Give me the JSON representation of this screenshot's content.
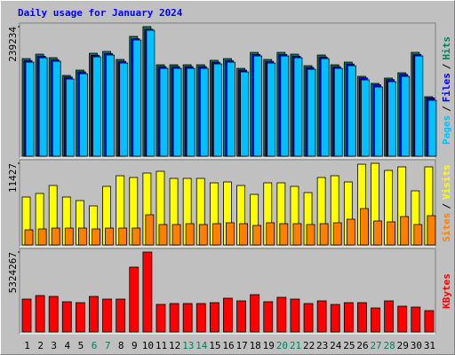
{
  "chart_data": {
    "type": "bar",
    "title": "Daily usage for January 2024",
    "categories": [
      "1",
      "2",
      "3",
      "4",
      "5",
      "6",
      "7",
      "8",
      "9",
      "10",
      "11",
      "12",
      "13",
      "14",
      "15",
      "16",
      "17",
      "18",
      "19",
      "20",
      "21",
      "22",
      "23",
      "24",
      "25",
      "26",
      "27",
      "28",
      "29",
      "30",
      "31"
    ],
    "x_label_colors": [
      "#000000",
      "#000000",
      "#000000",
      "#000000",
      "#000000",
      "#00805c",
      "#00805c",
      "#000000",
      "#000000",
      "#000000",
      "#000000",
      "#000000",
      "#00805c",
      "#00805c",
      "#000000",
      "#000000",
      "#000000",
      "#000000",
      "#000000",
      "#00805c",
      "#00805c",
      "#000000",
      "#000000",
      "#000000",
      "#000000",
      "#000000",
      "#00805c",
      "#00805c",
      "#000000",
      "#000000",
      "#000000"
    ],
    "legend_separator": "/",
    "panels": [
      {
        "ylim": [
          0,
          239234
        ],
        "yticks": [
          239234
        ],
        "series": [
          {
            "name": "Hits",
            "color": "#00805c",
            "values": [
              180240,
              188400,
              181900,
              149100,
              158900,
              190100,
              193400,
              178600,
              221200,
              239234,
              168800,
              168800,
              168800,
              168800,
              177000,
              180200,
              162200,
              191700,
              178600,
              191700,
              188400,
              167100,
              186800,
              168800,
              173700,
              147500,
              134400,
              144200,
              154000,
              191700,
              109800
            ]
          },
          {
            "name": "Files",
            "color": "#0000ff",
            "values": [
              176600,
              184600,
              178200,
              146100,
              155700,
              186300,
              189500,
              175000,
              216800,
              234400,
              165400,
              165400,
              165400,
              165400,
              173500,
              176600,
              159000,
              187900,
              175000,
              187900,
              184600,
              163800,
              183100,
              165400,
              170200,
              144600,
              131700,
              141300,
              150900,
              187900,
              107600
            ]
          },
          {
            "name": "Pages",
            "color": "#00c0ff",
            "values": [
              173600,
              181800,
              175300,
              142500,
              152300,
              183500,
              186800,
              172000,
              214600,
              232600,
              162200,
              162200,
              162200,
              162200,
              170400,
              173600,
              155600,
              185100,
              172000,
              185100,
              181800,
              160500,
              180200,
              162200,
              167100,
              140900,
              127800,
              137600,
              147400,
              185100,
              103200
            ]
          }
        ]
      },
      {
        "ylim": [
          0,
          11427
        ],
        "yticks": [
          11427
        ],
        "series": [
          {
            "name": "Visits",
            "color": "#ffff00",
            "values": [
              6707,
              7204,
              8322,
              6707,
              6210,
              5465,
              8198,
              9688,
              9440,
              10061,
              10309,
              9316,
              9316,
              9316,
              8694,
              8819,
              8322,
              7080,
              8694,
              8694,
              8198,
              7328,
              9440,
              9688,
              8819,
              11300,
              11427,
              10433,
              10930,
              7576,
              10930
            ]
          },
          {
            "name": "Sites",
            "color": "#ff8000",
            "values": [
              2111,
              2236,
              2360,
              2360,
              2360,
              2236,
              2360,
              2360,
              2360,
              4223,
              2857,
              2857,
              2981,
              2857,
              2981,
              3105,
              2981,
              2732,
              3105,
              2981,
              2981,
              2857,
              2981,
              3105,
              3602,
              5092,
              3353,
              3229,
              3974,
              2857,
              4099
            ]
          }
        ]
      },
      {
        "ylim": [
          0,
          5324267
        ],
        "yticks": [
          5324267
        ],
        "series": [
          {
            "name": "KBytes",
            "color": "#ff0000",
            "values": [
              2188900,
              2425500,
              2366400,
              2011400,
              1952200,
              2366400,
              2188900,
              2188900,
              4318600,
              5324267,
              1833900,
              1893100,
              1893100,
              1893100,
              1952200,
              2248000,
              2070600,
              2484700,
              2011400,
              2307200,
              2188900,
              1893100,
              2070600,
              1833900,
              1952200,
              1952200,
              1597300,
              2070600,
              1715600,
              1656500,
              1419800
            ]
          }
        ]
      }
    ]
  }
}
